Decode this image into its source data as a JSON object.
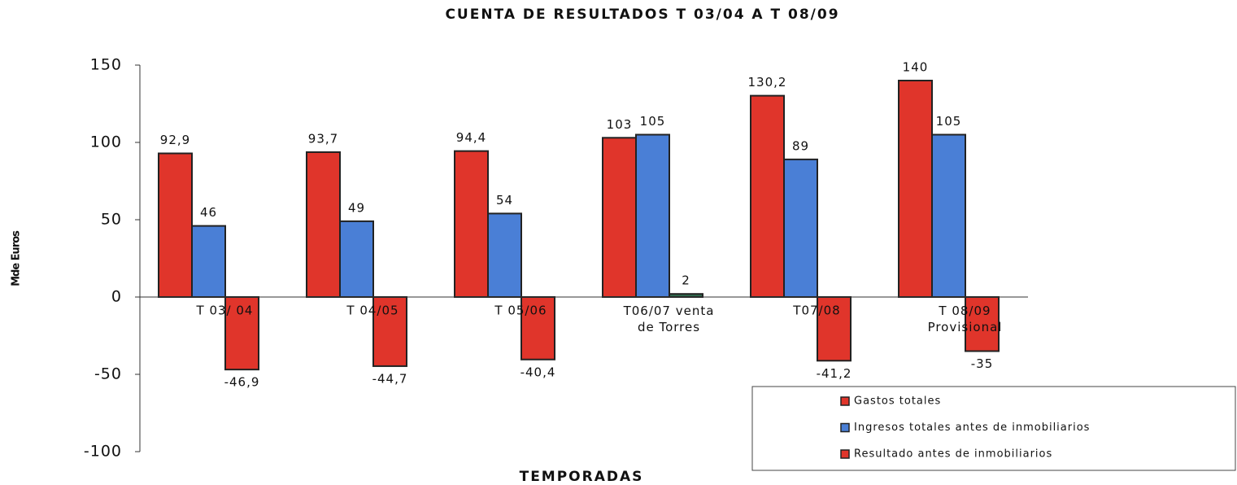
{
  "chart_data": {
    "type": "bar",
    "title": "CUENTA  DE RESULTADOS  T 03/04 A  T 08/09",
    "x_label": "TEMPORADAS",
    "y_label": "Mde Euros",
    "categories": [
      "T 03/ 04",
      "T 04/05",
      "T 05/06",
      "T06/07 venta de Torres",
      "T07/08",
      "T 08/09 Provisional"
    ],
    "series": [
      {
        "name": "Gastos totales",
        "color": "#e0352b",
        "values": [
          92.9,
          93.7,
          94.4,
          103,
          130.2,
          140
        ],
        "value_labels": [
          "92,9",
          "93,7",
          "94,4",
          "103",
          "130,2",
          "140"
        ]
      },
      {
        "name": "Ingresos totales antes de inmobiliarios",
        "color": "#4a7fd6",
        "values": [
          46,
          49,
          54,
          105,
          89,
          105
        ]
      },
      {
        "name": "Resultado antes de inmobiliarios",
        "color": "#e0352b",
        "colors": [
          "#e0352b",
          "#e0352b",
          "#e0352b",
          "#2f6b4e",
          "#e0352b",
          "#e0352b"
        ],
        "values": [
          -46.9,
          -44.7,
          -40.4,
          2,
          -41.2,
          -35
        ],
        "value_labels": [
          "-46,9",
          "-44,7",
          "-40,4",
          "2",
          "-41,2",
          "-35"
        ]
      }
    ],
    "ylim": [
      -100,
      150
    ],
    "yticks": [
      150,
      100,
      50,
      0,
      -50,
      -100
    ],
    "legend": "bottom-right"
  }
}
